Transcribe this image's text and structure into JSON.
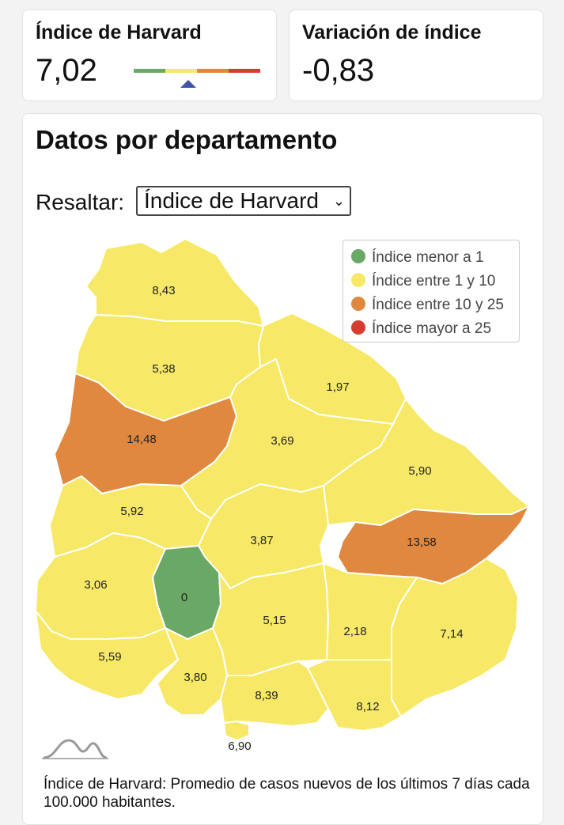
{
  "kpis": {
    "harvard": {
      "title": "Índice de Harvard",
      "value": "7,02",
      "level": 7.02
    },
    "variation": {
      "title": "Variación de índice",
      "value": "-0,83"
    }
  },
  "colors": {
    "green": "#6aa865",
    "yellow": "#f7e967",
    "orange": "#e0883f",
    "red": "#d63d30",
    "border": "#ffffff"
  },
  "section": {
    "title": "Datos por departamento",
    "highlight_label": "Resaltar:",
    "highlight_selected": "Índice de Harvard"
  },
  "legend": [
    {
      "label": "Índice menor a 1",
      "color": "#6aa865"
    },
    {
      "label": "Índice entre 1 y 10",
      "color": "#f7e967"
    },
    {
      "label": "Índice entre 10 y 25",
      "color": "#e0883f"
    },
    {
      "label": "Índice mayor a 25",
      "color": "#d63d30"
    }
  ],
  "departments": [
    {
      "value": "8,43",
      "category": "yellow"
    },
    {
      "value": "5,38",
      "category": "yellow"
    },
    {
      "value": "1,97",
      "category": "yellow"
    },
    {
      "value": "14,48",
      "category": "orange"
    },
    {
      "value": "3,69",
      "category": "yellow"
    },
    {
      "value": "5,90",
      "category": "yellow"
    },
    {
      "value": "5,92",
      "category": "yellow"
    },
    {
      "value": "3,87",
      "category": "yellow"
    },
    {
      "value": "13,58",
      "category": "orange"
    },
    {
      "value": "3,06",
      "category": "yellow"
    },
    {
      "value": "0",
      "category": "green"
    },
    {
      "value": "5,15",
      "category": "yellow"
    },
    {
      "value": "2,18",
      "category": "yellow"
    },
    {
      "value": "7,14",
      "category": "yellow"
    },
    {
      "value": "5,59",
      "category": "yellow"
    },
    {
      "value": "3,80",
      "category": "yellow"
    },
    {
      "value": "8,39",
      "category": "yellow"
    },
    {
      "value": "8,12",
      "category": "yellow"
    },
    {
      "value": "6,90",
      "category": "yellow"
    }
  ],
  "footnote": "Índice de Harvard: Promedio de casos nuevos de los últimos 7 días cada 100.000 habitantes.",
  "logo_icon": "mountains-logo-icon"
}
